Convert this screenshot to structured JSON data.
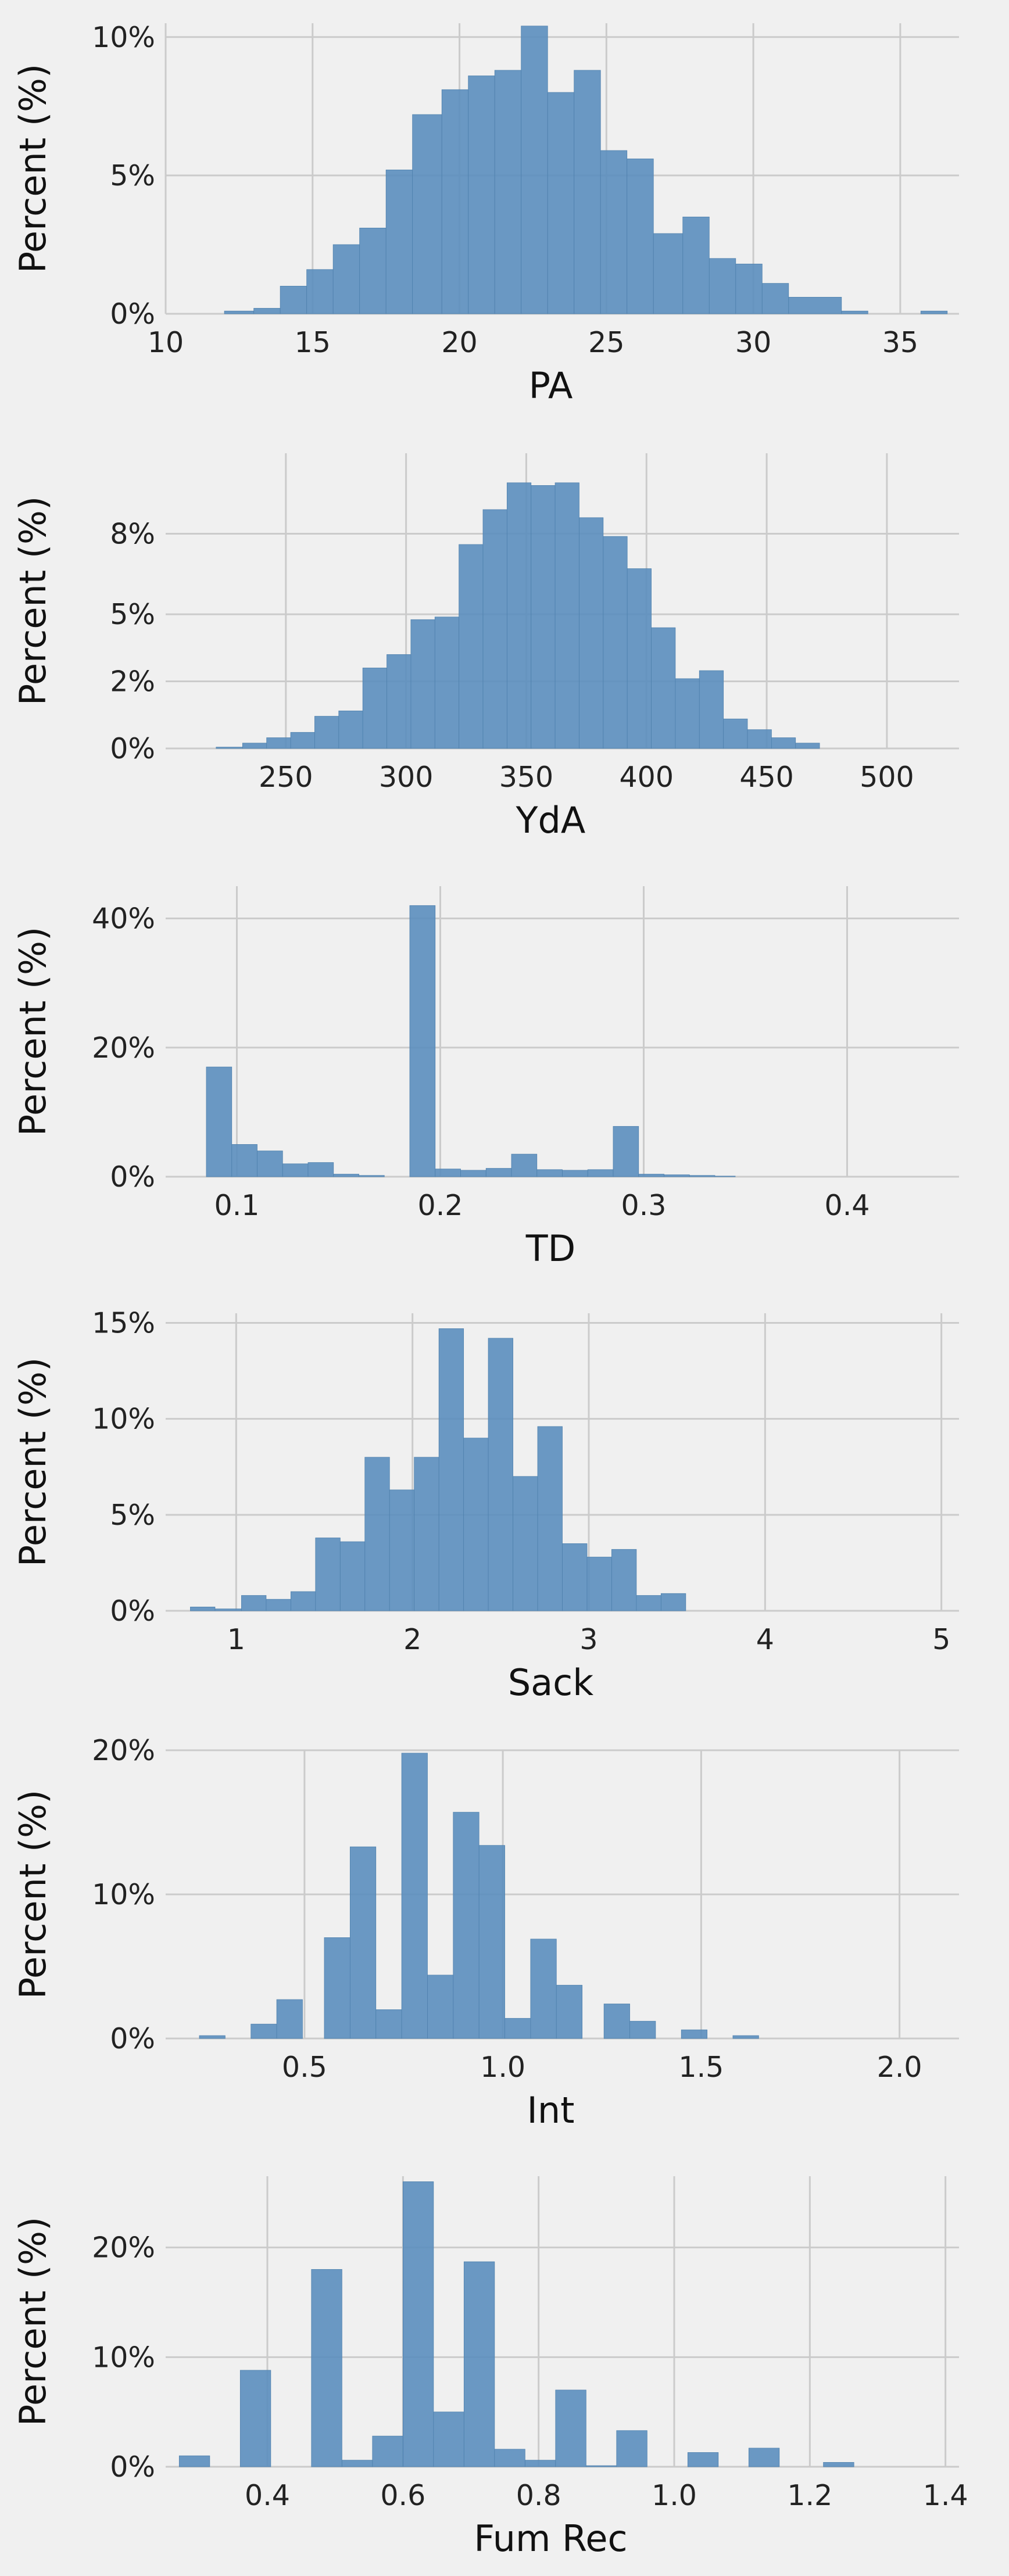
{
  "chart_data": [
    {
      "type": "bar",
      "xlabel": "PA",
      "ylabel": "Percent (%)",
      "xlim": [
        10,
        37
      ],
      "ylim": [
        0,
        10.5
      ],
      "xticks": [
        10,
        15,
        20,
        25,
        30,
        35
      ],
      "xtick_labels": [
        "10",
        "15",
        "20",
        "25",
        "30",
        "35"
      ],
      "yticks": [
        0,
        5,
        10
      ],
      "ytick_labels": [
        "0%",
        "5%",
        "10%"
      ],
      "grid": true,
      "color": "#5b8ebe",
      "bins": [
        {
          "x0": 12.0,
          "x1": 13.0,
          "value": 0.1
        },
        {
          "x0": 13.0,
          "x1": 13.9,
          "value": 0.2
        },
        {
          "x0": 13.9,
          "x1": 14.8,
          "value": 1.0
        },
        {
          "x0": 14.8,
          "x1": 15.7,
          "value": 1.6
        },
        {
          "x0": 15.7,
          "x1": 16.6,
          "value": 2.5
        },
        {
          "x0": 16.6,
          "x1": 17.5,
          "value": 3.1
        },
        {
          "x0": 17.5,
          "x1": 18.4,
          "value": 5.2
        },
        {
          "x0": 18.4,
          "x1": 19.4,
          "value": 7.2
        },
        {
          "x0": 19.4,
          "x1": 20.3,
          "value": 8.1
        },
        {
          "x0": 20.3,
          "x1": 21.2,
          "value": 8.6
        },
        {
          "x0": 21.2,
          "x1": 22.1,
          "value": 8.8
        },
        {
          "x0": 22.1,
          "x1": 23.0,
          "value": 10.4
        },
        {
          "x0": 23.0,
          "x1": 23.9,
          "value": 8.0
        },
        {
          "x0": 23.9,
          "x1": 24.8,
          "value": 8.8
        },
        {
          "x0": 24.8,
          "x1": 25.7,
          "value": 5.9
        },
        {
          "x0": 25.7,
          "x1": 26.6,
          "value": 5.6
        },
        {
          "x0": 26.6,
          "x1": 27.6,
          "value": 2.9
        },
        {
          "x0": 27.6,
          "x1": 28.5,
          "value": 3.5
        },
        {
          "x0": 28.5,
          "x1": 29.4,
          "value": 2.0
        },
        {
          "x0": 29.4,
          "x1": 30.3,
          "value": 1.8
        },
        {
          "x0": 30.3,
          "x1": 31.2,
          "value": 1.1
        },
        {
          "x0": 31.2,
          "x1": 33.0,
          "value": 0.6
        },
        {
          "x0": 33.0,
          "x1": 33.9,
          "value": 0.1
        },
        {
          "x0": 35.7,
          "x1": 36.6,
          "value": 0.1
        }
      ]
    },
    {
      "type": "bar",
      "xlabel": "YdA",
      "ylabel": "Percent (%)",
      "xlim": [
        200,
        530
      ],
      "ylim": [
        0,
        11
      ],
      "xticks": [
        250,
        300,
        350,
        400,
        450,
        500
      ],
      "xtick_labels": [
        "250",
        "300",
        "350",
        "400",
        "450",
        "500"
      ],
      "yticks": [
        0,
        2.5,
        5,
        8
      ],
      "ytick_labels": [
        "0%",
        "2%",
        "5%",
        "8%"
      ],
      "grid": true,
      "color": "#5b8ebe",
      "bins": [
        {
          "x0": 221,
          "x1": 232,
          "value": 0.05
        },
        {
          "x0": 232,
          "x1": 242,
          "value": 0.2
        },
        {
          "x0": 242,
          "x1": 252,
          "value": 0.4
        },
        {
          "x0": 252,
          "x1": 262,
          "value": 0.6
        },
        {
          "x0": 262,
          "x1": 272,
          "value": 1.2
        },
        {
          "x0": 272,
          "x1": 282,
          "value": 1.4
        },
        {
          "x0": 282,
          "x1": 292,
          "value": 3.0
        },
        {
          "x0": 292,
          "x1": 302,
          "value": 3.5
        },
        {
          "x0": 302,
          "x1": 312,
          "value": 4.8
        },
        {
          "x0": 312,
          "x1": 322,
          "value": 4.9
        },
        {
          "x0": 322,
          "x1": 332,
          "value": 7.6
        },
        {
          "x0": 332,
          "x1": 342,
          "value": 8.9
        },
        {
          "x0": 342,
          "x1": 352,
          "value": 9.9
        },
        {
          "x0": 352,
          "x1": 362,
          "value": 9.8
        },
        {
          "x0": 362,
          "x1": 372,
          "value": 9.9
        },
        {
          "x0": 372,
          "x1": 382,
          "value": 8.6
        },
        {
          "x0": 382,
          "x1": 392,
          "value": 7.9
        },
        {
          "x0": 392,
          "x1": 402,
          "value": 6.7
        },
        {
          "x0": 402,
          "x1": 412,
          "value": 4.5
        },
        {
          "x0": 412,
          "x1": 422,
          "value": 2.6
        },
        {
          "x0": 422,
          "x1": 432,
          "value": 2.9
        },
        {
          "x0": 432,
          "x1": 442,
          "value": 1.1
        },
        {
          "x0": 442,
          "x1": 452,
          "value": 0.7
        },
        {
          "x0": 452,
          "x1": 462,
          "value": 0.4
        },
        {
          "x0": 462,
          "x1": 472,
          "value": 0.2
        }
      ]
    },
    {
      "type": "bar",
      "xlabel": "TD",
      "ylabel": "Percent (%)",
      "xlim": [
        0.065,
        0.455
      ],
      "ylim": [
        0,
        45
      ],
      "xticks": [
        0.1,
        0.2,
        0.3,
        0.4
      ],
      "xtick_labels": [
        "0.1",
        "0.2",
        "0.3",
        "0.4"
      ],
      "yticks": [
        0,
        20,
        40
      ],
      "ytick_labels": [
        "0%",
        "20%",
        "40%"
      ],
      "grid": true,
      "color": "#5b8ebe",
      "bins": [
        {
          "x0": 0.085,
          "x1": 0.0975,
          "value": 17.0
        },
        {
          "x0": 0.0975,
          "x1": 0.11,
          "value": 5.0
        },
        {
          "x0": 0.11,
          "x1": 0.1225,
          "value": 4.0
        },
        {
          "x0": 0.1225,
          "x1": 0.135,
          "value": 2.0
        },
        {
          "x0": 0.135,
          "x1": 0.1475,
          "value": 2.2
        },
        {
          "x0": 0.1475,
          "x1": 0.16,
          "value": 0.4
        },
        {
          "x0": 0.16,
          "x1": 0.1725,
          "value": 0.2
        },
        {
          "x0": 0.185,
          "x1": 0.1975,
          "value": 42.0
        },
        {
          "x0": 0.1975,
          "x1": 0.21,
          "value": 1.2
        },
        {
          "x0": 0.21,
          "x1": 0.2225,
          "value": 1.0
        },
        {
          "x0": 0.2225,
          "x1": 0.235,
          "value": 1.3
        },
        {
          "x0": 0.235,
          "x1": 0.2475,
          "value": 3.5
        },
        {
          "x0": 0.2475,
          "x1": 0.26,
          "value": 1.1
        },
        {
          "x0": 0.26,
          "x1": 0.2725,
          "value": 1.0
        },
        {
          "x0": 0.2725,
          "x1": 0.285,
          "value": 1.1
        },
        {
          "x0": 0.285,
          "x1": 0.2975,
          "value": 7.8
        },
        {
          "x0": 0.2975,
          "x1": 0.31,
          "value": 0.4
        },
        {
          "x0": 0.31,
          "x1": 0.3225,
          "value": 0.3
        },
        {
          "x0": 0.3225,
          "x1": 0.335,
          "value": 0.2
        },
        {
          "x0": 0.335,
          "x1": 0.345,
          "value": 0.1
        }
      ]
    },
    {
      "type": "bar",
      "xlabel": "Sack",
      "ylabel": "Percent (%)",
      "xlim": [
        0.6,
        5.1
      ],
      "ylim": [
        0,
        15.5
      ],
      "xticks": [
        1,
        2,
        3,
        4,
        5
      ],
      "xtick_labels": [
        "1",
        "2",
        "3",
        "4",
        "5"
      ],
      "yticks": [
        0,
        5,
        10,
        15
      ],
      "ytick_labels": [
        "0%",
        "5%",
        "10%",
        "15%"
      ],
      "grid": true,
      "color": "#5b8ebe",
      "bins": [
        {
          "x0": 0.74,
          "x1": 0.88,
          "value": 0.2
        },
        {
          "x0": 0.88,
          "x1": 1.03,
          "value": 0.1
        },
        {
          "x0": 1.03,
          "x1": 1.17,
          "value": 0.8
        },
        {
          "x0": 1.17,
          "x1": 1.31,
          "value": 0.6
        },
        {
          "x0": 1.31,
          "x1": 1.45,
          "value": 1.0
        },
        {
          "x0": 1.45,
          "x1": 1.59,
          "value": 3.8
        },
        {
          "x0": 1.59,
          "x1": 1.73,
          "value": 3.6
        },
        {
          "x0": 1.73,
          "x1": 1.87,
          "value": 8.0
        },
        {
          "x0": 1.87,
          "x1": 2.01,
          "value": 6.3
        },
        {
          "x0": 2.01,
          "x1": 2.15,
          "value": 8.0
        },
        {
          "x0": 2.15,
          "x1": 2.29,
          "value": 14.7
        },
        {
          "x0": 2.29,
          "x1": 2.43,
          "value": 9.0
        },
        {
          "x0": 2.43,
          "x1": 2.57,
          "value": 14.2
        },
        {
          "x0": 2.57,
          "x1": 2.71,
          "value": 7.0
        },
        {
          "x0": 2.71,
          "x1": 2.85,
          "value": 9.6
        },
        {
          "x0": 2.85,
          "x1": 2.99,
          "value": 3.5
        },
        {
          "x0": 2.99,
          "x1": 3.13,
          "value": 2.8
        },
        {
          "x0": 3.13,
          "x1": 3.27,
          "value": 3.2
        },
        {
          "x0": 3.27,
          "x1": 3.41,
          "value": 0.8
        },
        {
          "x0": 3.41,
          "x1": 3.55,
          "value": 0.9
        }
      ]
    },
    {
      "type": "bar",
      "xlabel": "Int",
      "ylabel": "Percent (%)",
      "xlim": [
        0.15,
        2.15
      ],
      "ylim": [
        0,
        20
      ],
      "xticks": [
        0.5,
        1.0,
        1.5,
        2.0
      ],
      "xtick_labels": [
        "0.5",
        "1.0",
        "1.5",
        "2.0"
      ],
      "yticks": [
        0,
        10,
        20
      ],
      "ytick_labels": [
        "0%",
        "10%",
        "20%"
      ],
      "grid": true,
      "color": "#5b8ebe",
      "bins": [
        {
          "x0": 0.235,
          "x1": 0.3,
          "value": 0.2
        },
        {
          "x0": 0.365,
          "x1": 0.43,
          "value": 1.0
        },
        {
          "x0": 0.43,
          "x1": 0.495,
          "value": 2.7
        },
        {
          "x0": 0.55,
          "x1": 0.615,
          "value": 7.0
        },
        {
          "x0": 0.615,
          "x1": 0.68,
          "value": 13.3
        },
        {
          "x0": 0.68,
          "x1": 0.745,
          "value": 2.0
        },
        {
          "x0": 0.745,
          "x1": 0.81,
          "value": 19.8
        },
        {
          "x0": 0.81,
          "x1": 0.875,
          "value": 4.4
        },
        {
          "x0": 0.875,
          "x1": 0.94,
          "value": 15.7
        },
        {
          "x0": 0.94,
          "x1": 1.005,
          "value": 13.4
        },
        {
          "x0": 1.005,
          "x1": 1.07,
          "value": 1.4
        },
        {
          "x0": 1.07,
          "x1": 1.135,
          "value": 6.9
        },
        {
          "x0": 1.135,
          "x1": 1.2,
          "value": 3.7
        },
        {
          "x0": 1.255,
          "x1": 1.32,
          "value": 2.4
        },
        {
          "x0": 1.32,
          "x1": 1.385,
          "value": 1.2
        },
        {
          "x0": 1.45,
          "x1": 1.515,
          "value": 0.6
        },
        {
          "x0": 1.58,
          "x1": 1.645,
          "value": 0.2
        }
      ]
    },
    {
      "type": "bar",
      "xlabel": "Fum Rec",
      "ylabel": "Percent (%)",
      "xlim": [
        0.25,
        1.42
      ],
      "ylim": [
        0,
        26.5
      ],
      "xticks": [
        0.4,
        0.6,
        0.8,
        1.0,
        1.2,
        1.4
      ],
      "xtick_labels": [
        "0.4",
        "0.6",
        "0.8",
        "1.0",
        "1.2",
        "1.4"
      ],
      "yticks": [
        0,
        10,
        20
      ],
      "ytick_labels": [
        "0%",
        "10%",
        "20%"
      ],
      "grid": true,
      "color": "#5b8ebe",
      "bins": [
        {
          "x0": 0.27,
          "x1": 0.315,
          "value": 1.0
        },
        {
          "x0": 0.36,
          "x1": 0.405,
          "value": 8.8
        },
        {
          "x0": 0.465,
          "x1": 0.51,
          "value": 18.0
        },
        {
          "x0": 0.51,
          "x1": 0.555,
          "value": 0.6
        },
        {
          "x0": 0.555,
          "x1": 0.6,
          "value": 2.8
        },
        {
          "x0": 0.6,
          "x1": 0.645,
          "value": 26.0
        },
        {
          "x0": 0.645,
          "x1": 0.69,
          "value": 5.0
        },
        {
          "x0": 0.69,
          "x1": 0.735,
          "value": 18.7
        },
        {
          "x0": 0.735,
          "x1": 0.78,
          "value": 1.6
        },
        {
          "x0": 0.78,
          "x1": 0.825,
          "value": 0.6
        },
        {
          "x0": 0.825,
          "x1": 0.87,
          "value": 7.0
        },
        {
          "x0": 0.87,
          "x1": 0.915,
          "value": 0.1
        },
        {
          "x0": 0.915,
          "x1": 0.96,
          "value": 3.3
        },
        {
          "x0": 1.02,
          "x1": 1.065,
          "value": 1.3
        },
        {
          "x0": 1.11,
          "x1": 1.155,
          "value": 1.7
        },
        {
          "x0": 1.22,
          "x1": 1.265,
          "value": 0.4
        }
      ]
    }
  ]
}
